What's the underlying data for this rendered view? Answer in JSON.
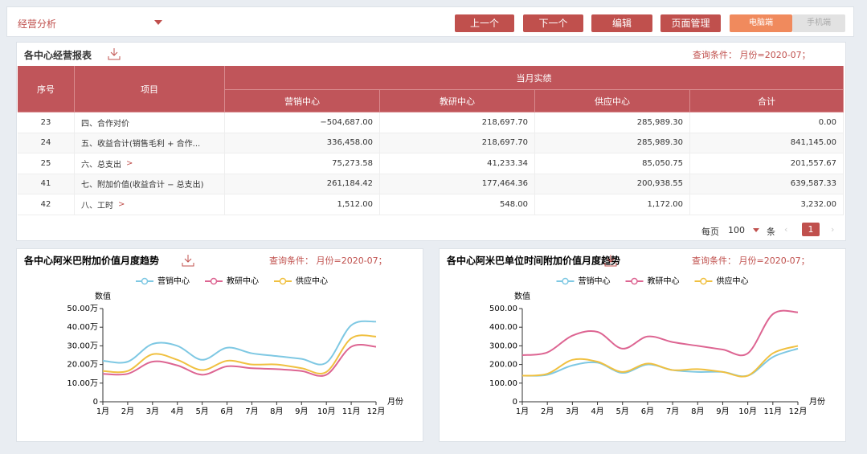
{
  "header": {
    "title": "经营分析",
    "buttons": [
      "上一个",
      "下一个",
      "编辑",
      "页面管理"
    ],
    "toggle": [
      "电脑端",
      "手机端"
    ]
  },
  "report": {
    "title": "各中心经营报表",
    "query": "查询条件： 月份=2020-07；",
    "table": {
      "columns": [
        "序号",
        "项目",
        "当月实绩",
        "营销中心",
        "教研中心",
        "供应中心",
        "合计"
      ],
      "rows": [
        [
          "23",
          "四、合作对价",
          "−504,687.00",
          "218,697.70",
          "285,989.30",
          "0.00"
        ],
        [
          "24",
          "五、收益合计(销售毛利 + 合作...",
          "336,458.00",
          "218,697.70",
          "285,989.30",
          "841,145.00"
        ],
        [
          "25",
          "六、总支出",
          "75,273.58",
          "41,233.34",
          "85,050.75",
          "201,557.67"
        ],
        [
          "41",
          "七、附加价值(收益合计 − 总支出)",
          "261,184.42",
          "177,464.36",
          "200,938.55",
          "639,587.33"
        ],
        [
          "42",
          "八、工时",
          "1,512.00",
          "548.00",
          "1,172.00",
          "3,232.00"
        ]
      ]
    },
    "pagination": {
      "per_page_label": "每页",
      "per_page": "100",
      "unit": "条",
      "page": "1"
    }
  },
  "chart_data": [
    {
      "type": "line",
      "title": "各中心阿米巴附加价值月度趋势",
      "query": "查询条件： 月份=2020-07；",
      "y_label": "数值",
      "x_label": "月份",
      "categories": [
        "1月",
        "2月",
        "3月",
        "4月",
        "5月",
        "6月",
        "7月",
        "8月",
        "9月",
        "10月",
        "11月",
        "12月"
      ],
      "ylim": [
        0,
        50
      ],
      "yticks": [
        0,
        {
          "value": 10,
          "label": "10.00万"
        },
        {
          "value": 20,
          "label": "20.00万"
        },
        {
          "value": 30,
          "label": "30.00万"
        },
        {
          "value": 40,
          "label": "40.00万"
        },
        {
          "value": 50,
          "label": "50.00万"
        }
      ],
      "grid": false,
      "series": [
        {
          "name": "营销中心",
          "color": "#7ec8e3",
          "values": [
            22,
            21.5,
            31,
            30,
            22.5,
            29,
            26,
            24.5,
            23,
            21,
            41,
            43
          ]
        },
        {
          "name": "教研中心",
          "color": "#dd6592",
          "values": [
            15,
            15,
            21.5,
            19.5,
            14.5,
            19,
            18,
            17.5,
            16.5,
            14.5,
            29.5,
            29.5
          ]
        },
        {
          "name": "供应中心",
          "color": "#f0c040",
          "values": [
            16.5,
            16.5,
            25.5,
            22.5,
            17,
            22,
            20,
            20,
            18,
            16,
            34,
            35
          ]
        }
      ]
    },
    {
      "type": "line",
      "title": "各中心阿米巴单位时间附加价值月度趋势",
      "query": "查询条件： 月份=2020-07；",
      "y_label": "数值",
      "x_label": "月份",
      "categories": [
        "1月",
        "2月",
        "3月",
        "4月",
        "5月",
        "6月",
        "7月",
        "8月",
        "9月",
        "10月",
        "11月",
        "12月"
      ],
      "ylim": [
        0,
        500
      ],
      "yticks": [
        0,
        {
          "value": 100,
          "label": "100.00"
        },
        {
          "value": 200,
          "label": "200.00"
        },
        {
          "value": 300,
          "label": "300.00"
        },
        {
          "value": 400,
          "label": "400.00"
        },
        {
          "value": 500,
          "label": "500.00"
        }
      ],
      "grid": false,
      "series": [
        {
          "name": "营销中心",
          "color": "#7ec8e3",
          "values": [
            140,
            145,
            195,
            210,
            155,
            200,
            170,
            160,
            160,
            140,
            240,
            285
          ]
        },
        {
          "name": "教研中心",
          "color": "#dd6592",
          "values": [
            250,
            265,
            355,
            375,
            285,
            350,
            320,
            300,
            280,
            260,
            470,
            480
          ]
        },
        {
          "name": "供应中心",
          "color": "#f0c040",
          "values": [
            140,
            150,
            225,
            215,
            160,
            205,
            170,
            175,
            160,
            140,
            260,
            300
          ]
        }
      ]
    }
  ]
}
